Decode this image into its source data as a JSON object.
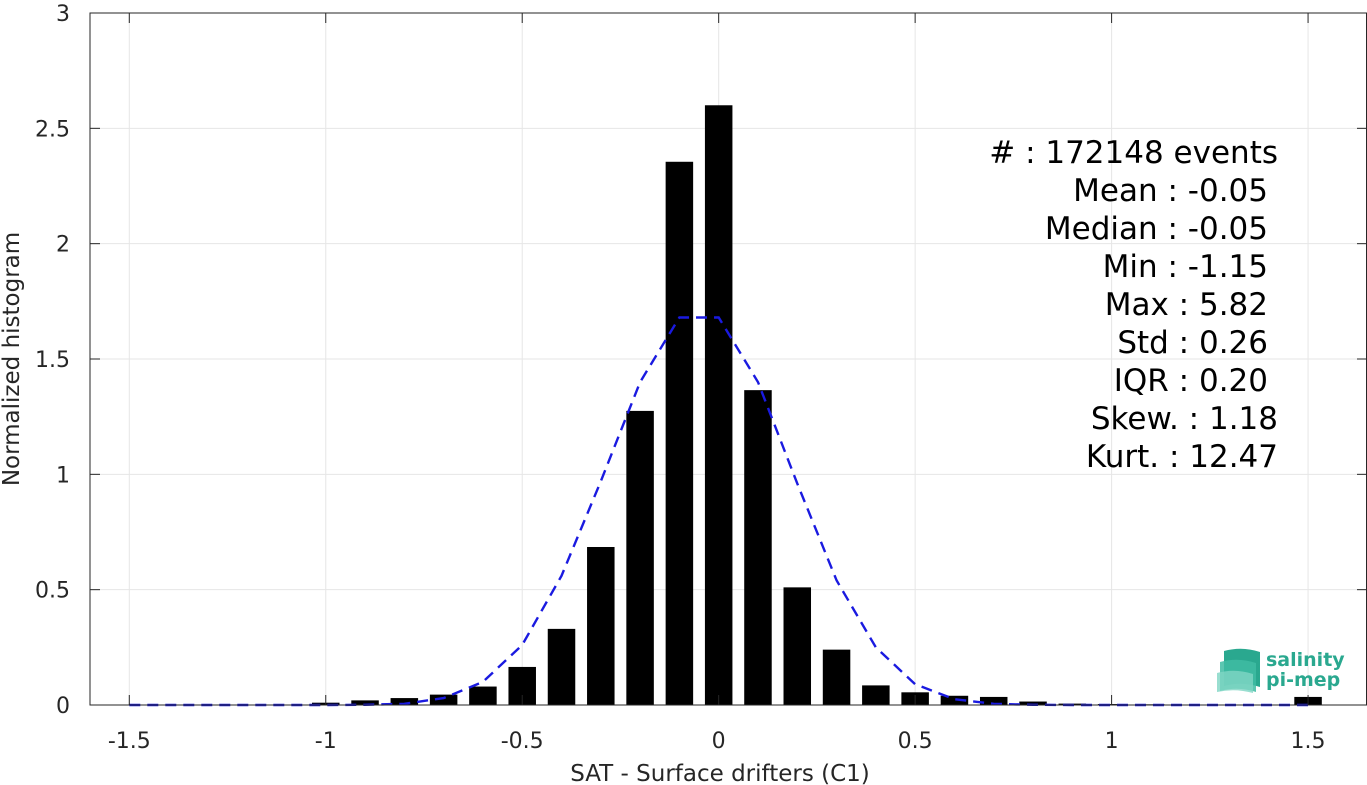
{
  "chart_data": {
    "type": "bar",
    "xlabel": "SAT - Surface drifters (C1)",
    "ylabel": "Normalized histogram",
    "xlim": [
      -1.6,
      1.65
    ],
    "ylim": [
      0,
      3
    ],
    "xticks": [
      -1.5,
      -1,
      -0.5,
      0,
      0.5,
      1,
      1.5
    ],
    "xtick_labels": [
      "-1.5",
      "-1",
      "-0.5",
      "0",
      "0.5",
      "1",
      "1.5"
    ],
    "yticks": [
      0,
      0.5,
      1,
      1.5,
      2,
      2.5,
      3
    ],
    "ytick_labels": [
      "0",
      "0.5",
      "1",
      "1.5",
      "2",
      "2.5",
      "3"
    ],
    "grid": true,
    "bar_width": 0.07,
    "bars": {
      "x": [
        -1.5,
        -1.4,
        -1.3,
        -1.2,
        -1.1,
        -1.0,
        -0.9,
        -0.8,
        -0.7,
        -0.6,
        -0.5,
        -0.4,
        -0.3,
        -0.2,
        -0.1,
        0.0,
        0.1,
        0.2,
        0.3,
        0.4,
        0.5,
        0.6,
        0.7,
        0.8,
        0.9,
        1.0,
        1.1,
        1.2,
        1.3,
        1.4,
        1.5
      ],
      "values": [
        0.0,
        0.0,
        0.0,
        0.0,
        0.002,
        0.01,
        0.02,
        0.03,
        0.045,
        0.08,
        0.165,
        0.33,
        0.685,
        1.275,
        2.355,
        2.6,
        1.365,
        0.51,
        0.24,
        0.085,
        0.055,
        0.04,
        0.035,
        0.015,
        0.006,
        0.004,
        0.003,
        0.002,
        0.001,
        0.001,
        0.035
      ],
      "color": "#000000"
    },
    "fit_curve": {
      "style": "dashed",
      "color": "#1a1ae0",
      "x": [
        -1.5,
        -1.4,
        -1.3,
        -1.2,
        -1.1,
        -1.0,
        -0.9,
        -0.8,
        -0.7,
        -0.6,
        -0.5,
        -0.4,
        -0.3,
        -0.2,
        -0.1,
        0.0,
        0.1,
        0.2,
        0.3,
        0.4,
        0.5,
        0.6,
        0.7,
        0.8,
        0.9,
        1.0,
        1.1,
        1.2,
        1.3,
        1.4,
        1.5
      ],
      "values": [
        0.0,
        0.0,
        0.0,
        0.0,
        0.0,
        0.0,
        0.001,
        0.005,
        0.03,
        0.1,
        0.26,
        0.56,
        0.97,
        1.4,
        1.68,
        1.68,
        1.4,
        0.96,
        0.54,
        0.25,
        0.09,
        0.025,
        0.005,
        0.001,
        0.0,
        0.0,
        0.0,
        0.0,
        0.0,
        0.0,
        0.0
      ]
    },
    "stats": [
      "#  : 172148 events",
      "Mean : -0.05",
      "Median : -0.05",
      "Min : -1.15",
      "Max : 5.82",
      "Std : 0.26",
      "IQR : 0.20",
      "Skew. : 1.18",
      "Kurt. : 12.47"
    ]
  },
  "logo": {
    "line1": "salinity",
    "line2": "pi-mep",
    "color": "#2aa88f"
  }
}
